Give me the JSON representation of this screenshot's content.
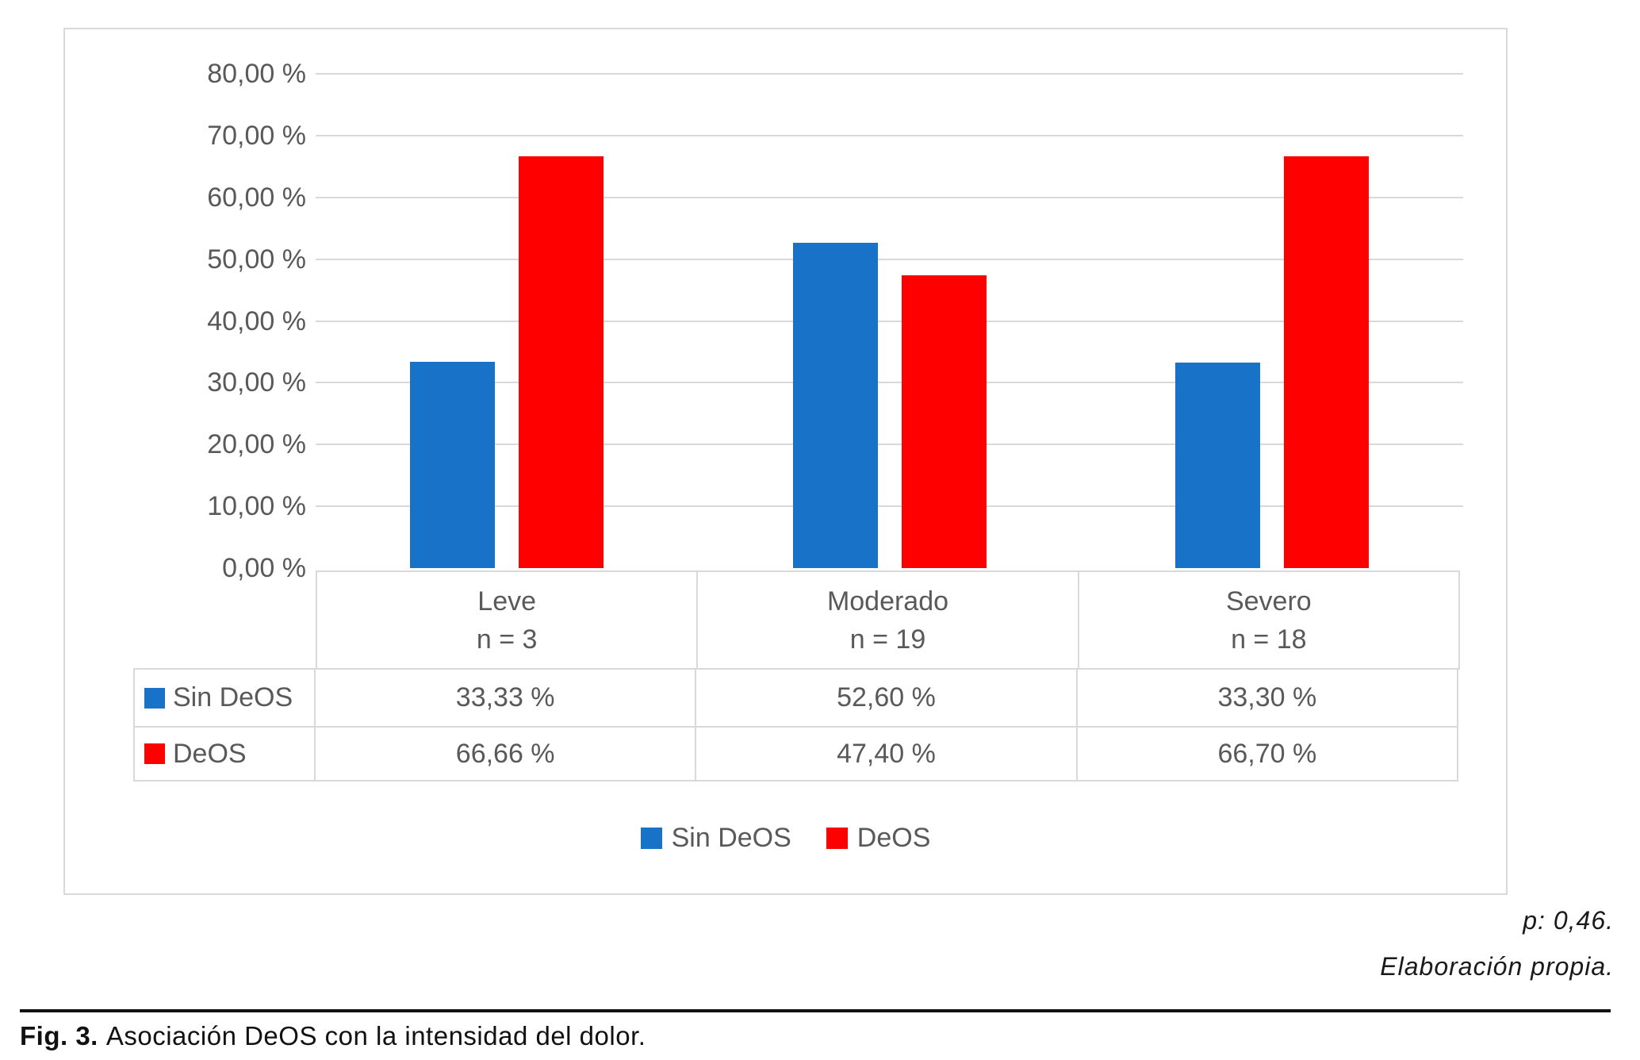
{
  "figure": {
    "p_note": "p: 0,46.",
    "source_note": "Elaboración propia.",
    "caption_label": "Fig. 3.",
    "caption_text": "Asociación DeOS con la intensidad del dolor."
  },
  "chart_data": {
    "type": "bar",
    "title": "",
    "categories": [
      "Leve",
      "Moderado",
      "Severo"
    ],
    "category_sublabels": [
      "n = 3",
      "n = 19",
      "n = 18"
    ],
    "series": [
      {
        "name": "Sin DeOS",
        "color": "#1772c8",
        "values": [
          33.33,
          52.6,
          33.3
        ],
        "value_labels": [
          "33,33 %",
          "52,60 %",
          "33,30 %"
        ]
      },
      {
        "name": "DeOS",
        "color": "#ff0000",
        "values": [
          66.66,
          47.4,
          66.7
        ],
        "value_labels": [
          "66,66 %",
          "47,40 %",
          "66,70 %"
        ]
      }
    ],
    "xlabel": "",
    "ylabel": "",
    "ylim": [
      0,
      80
    ],
    "ytick_step": 10,
    "ytick_labels": [
      "0,00 %",
      "10,00 %",
      "20,00 %",
      "30,00 %",
      "40,00 %",
      "50,00 %",
      "60,00 %",
      "70,00 %",
      "80,00 %"
    ],
    "grid": true,
    "legend_position": "bottom",
    "table_below_axis": true,
    "colors": {
      "grid": "#d9d9d9",
      "frame": "#d9d9d9",
      "text": "#595959"
    }
  }
}
